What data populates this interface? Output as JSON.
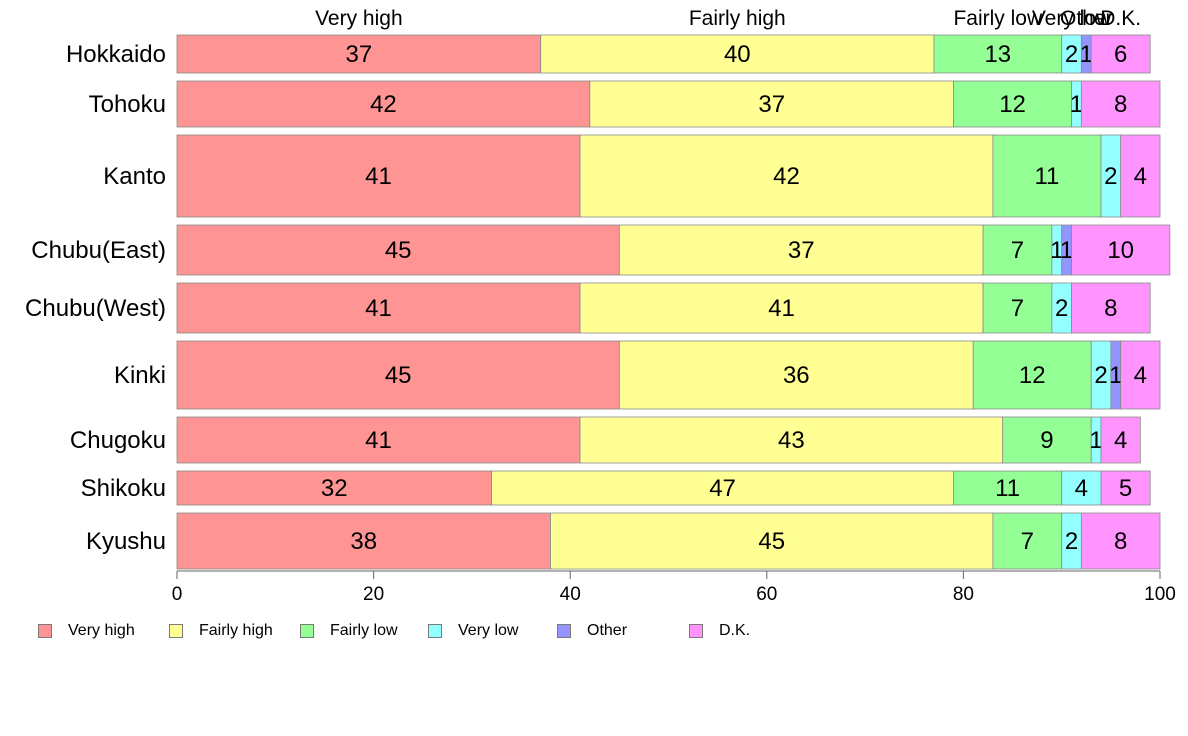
{
  "chart_data": {
    "type": "bar",
    "orientation": "horizontal",
    "stacked": true,
    "categories": [
      "Hokkaido",
      "Tohoku",
      "Kanto",
      "Chubu(East)",
      "Chubu(West)",
      "Kinki",
      "Chugoku",
      "Shikoku",
      "Kyushu"
    ],
    "series": [
      {
        "name": "Very high",
        "color": "#ff9494",
        "values": [
          37,
          42,
          41,
          45,
          41,
          45,
          41,
          32,
          38
        ]
      },
      {
        "name": "Fairly high",
        "color": "#ffff94",
        "values": [
          40,
          37,
          42,
          37,
          41,
          36,
          43,
          47,
          45
        ]
      },
      {
        "name": "Fairly low",
        "color": "#94ff94",
        "values": [
          13,
          12,
          11,
          7,
          7,
          12,
          9,
          11,
          7
        ]
      },
      {
        "name": "Very low",
        "color": "#94ffff",
        "values": [
          2,
          1,
          2,
          1,
          2,
          2,
          1,
          4,
          2
        ]
      },
      {
        "name": "Other",
        "color": "#9494ff",
        "values": [
          1,
          0,
          0,
          1,
          0,
          1,
          0,
          0,
          0
        ]
      },
      {
        "name": "D.K.",
        "color": "#ff94ff",
        "values": [
          6,
          8,
          4,
          10,
          8,
          4,
          4,
          5,
          8
        ]
      }
    ],
    "bar_widths": [
      38,
      46,
      82,
      50,
      50,
      68,
      46,
      34,
      56
    ],
    "top_labels": [
      "Very high",
      "Fairly high",
      "Fairly low",
      "Very low",
      "Other",
      "D.K."
    ],
    "x_ticks": [
      0,
      20,
      40,
      60,
      80,
      100
    ],
    "xlim": [
      0,
      100
    ],
    "grid": false,
    "legend_position": "bottom-left"
  }
}
